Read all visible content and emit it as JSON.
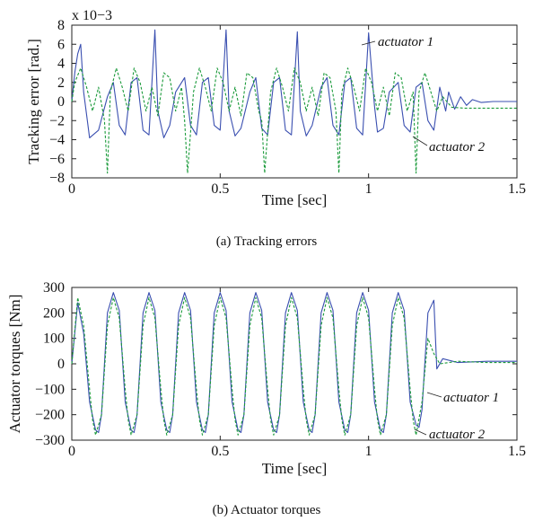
{
  "chart_data": [
    {
      "type": "line",
      "title": "",
      "xlabel": "Time [sec]",
      "ylabel": "Tracking error [rad.]",
      "y_multiplier_label": "x 10−3",
      "caption": "(a)  Tracking errors",
      "xlim": [
        0,
        1.5
      ],
      "ylim": [
        -8,
        8
      ],
      "x_ticks": [
        "0",
        "0.5",
        "1",
        "1.5"
      ],
      "y_ticks": [
        "8",
        "6",
        "4",
        "2",
        "0",
        "−2",
        "−4",
        "−6",
        "−8"
      ],
      "grid": false,
      "annotations": [
        "actuator 1",
        "actuator 2"
      ],
      "series": [
        {
          "name": "actuator 1",
          "color": "#3a4fb0",
          "style": "solid",
          "x": [
            0.0,
            0.01,
            0.02,
            0.03,
            0.04,
            0.06,
            0.09,
            0.12,
            0.14,
            0.16,
            0.18,
            0.2,
            0.22,
            0.24,
            0.26,
            0.28,
            0.29,
            0.31,
            0.33,
            0.35,
            0.38,
            0.4,
            0.42,
            0.44,
            0.46,
            0.48,
            0.5,
            0.52,
            0.53,
            0.55,
            0.57,
            0.6,
            0.62,
            0.64,
            0.66,
            0.68,
            0.7,
            0.72,
            0.74,
            0.76,
            0.77,
            0.79,
            0.81,
            0.84,
            0.86,
            0.88,
            0.9,
            0.92,
            0.94,
            0.96,
            0.98,
            1.0,
            1.02,
            1.03,
            1.05,
            1.07,
            1.1,
            1.12,
            1.14,
            1.16,
            1.18,
            1.2,
            1.22,
            1.24,
            1.26,
            1.27,
            1.29,
            1.31,
            1.33,
            1.35,
            1.38,
            1.42,
            1.46,
            1.5
          ],
          "values": [
            0.0,
            3.0,
            5.0,
            6.0,
            1.0,
            -3.8,
            -3.0,
            0.5,
            2.0,
            -2.5,
            -3.5,
            2.0,
            2.5,
            -3.0,
            -3.5,
            7.5,
            -1.0,
            -3.8,
            -2.5,
            1.0,
            2.5,
            -2.5,
            -3.5,
            2.0,
            2.5,
            -2.5,
            -3.0,
            7.5,
            -1.0,
            -3.6,
            -2.8,
            1.0,
            2.5,
            -2.8,
            -3.5,
            2.0,
            2.5,
            -3.0,
            -3.5,
            7.3,
            -1.0,
            -3.6,
            -2.5,
            1.5,
            2.5,
            -2.5,
            -3.5,
            2.0,
            2.5,
            -2.8,
            -3.5,
            7.2,
            -0.5,
            -3.2,
            -2.8,
            1.0,
            2.0,
            -2.5,
            -3.2,
            1.5,
            2.0,
            -2.0,
            -3.0,
            1.5,
            -1.0,
            1.0,
            -0.8,
            0.5,
            -0.4,
            0.2,
            -0.1,
            0.0,
            0.0,
            0.0
          ]
        },
        {
          "name": "actuator 2",
          "color": "#1a9a3a",
          "style": "dashed",
          "x": [
            0.0,
            0.01,
            0.03,
            0.05,
            0.07,
            0.09,
            0.11,
            0.12,
            0.13,
            0.15,
            0.17,
            0.19,
            0.21,
            0.23,
            0.25,
            0.27,
            0.29,
            0.31,
            0.33,
            0.35,
            0.37,
            0.38,
            0.39,
            0.41,
            0.43,
            0.45,
            0.47,
            0.49,
            0.51,
            0.53,
            0.55,
            0.57,
            0.59,
            0.61,
            0.63,
            0.64,
            0.65,
            0.67,
            0.69,
            0.71,
            0.73,
            0.75,
            0.77,
            0.79,
            0.81,
            0.83,
            0.85,
            0.87,
            0.89,
            0.9,
            0.91,
            0.93,
            0.95,
            0.97,
            0.99,
            1.01,
            1.03,
            1.05,
            1.07,
            1.09,
            1.11,
            1.13,
            1.15,
            1.16,
            1.17,
            1.19,
            1.21,
            1.23,
            1.25,
            1.28,
            1.32,
            1.4,
            1.5
          ],
          "values": [
            0.0,
            2.0,
            3.5,
            1.5,
            -1.0,
            1.5,
            -2.0,
            -7.5,
            1.0,
            3.5,
            1.5,
            -1.0,
            3.5,
            2.0,
            -1.0,
            1.5,
            -1.5,
            3.0,
            2.5,
            -1.0,
            1.5,
            -2.0,
            -7.5,
            1.0,
            3.5,
            1.5,
            -1.0,
            3.5,
            2.0,
            -1.0,
            1.5,
            -1.5,
            3.0,
            2.5,
            -1.0,
            -2.0,
            -7.5,
            1.0,
            3.5,
            1.5,
            -1.0,
            3.5,
            2.0,
            -1.0,
            1.5,
            -1.5,
            3.0,
            2.5,
            -1.0,
            -7.5,
            1.0,
            3.5,
            1.5,
            -1.0,
            3.5,
            2.0,
            -1.0,
            1.5,
            -1.5,
            3.0,
            2.5,
            -1.0,
            1.0,
            -7.5,
            1.0,
            3.0,
            1.0,
            -1.0,
            0.5,
            -0.6,
            -0.7,
            -0.7,
            -0.7
          ]
        }
      ]
    },
    {
      "type": "line",
      "title": "",
      "xlabel": "Time [sec]",
      "ylabel": "Actuator torques [Nm]",
      "caption": "(b)  Actuator torques",
      "xlim": [
        0,
        1.5
      ],
      "ylim": [
        -300,
        300
      ],
      "x_ticks": [
        "0",
        "0.5",
        "1",
        "1.5"
      ],
      "y_ticks": [
        "300",
        "200",
        "100",
        "0",
        "−100",
        "−200",
        "−300"
      ],
      "grid": false,
      "annotations": [
        "actuator 1",
        "actuator 2"
      ],
      "series": [
        {
          "name": "actuator 1",
          "color": "#3a4fb0",
          "style": "solid",
          "x": [
            0.0,
            0.02,
            0.04,
            0.06,
            0.08,
            0.09,
            0.1,
            0.12,
            0.14,
            0.16,
            0.18,
            0.2,
            0.21,
            0.22,
            0.24,
            0.26,
            0.28,
            0.3,
            0.32,
            0.33,
            0.34,
            0.36,
            0.38,
            0.4,
            0.42,
            0.44,
            0.45,
            0.46,
            0.48,
            0.5,
            0.52,
            0.54,
            0.56,
            0.57,
            0.58,
            0.6,
            0.62,
            0.64,
            0.66,
            0.68,
            0.69,
            0.7,
            0.72,
            0.74,
            0.76,
            0.78,
            0.8,
            0.81,
            0.82,
            0.84,
            0.86,
            0.88,
            0.9,
            0.92,
            0.93,
            0.94,
            0.96,
            0.98,
            1.0,
            1.02,
            1.04,
            1.05,
            1.06,
            1.08,
            1.1,
            1.12,
            1.14,
            1.16,
            1.17,
            1.18,
            1.2,
            1.22,
            1.23,
            1.25,
            1.3,
            1.4,
            1.5
          ],
          "values": [
            0,
            240,
            120,
            -150,
            -260,
            -270,
            -200,
            200,
            280,
            210,
            -150,
            -260,
            -270,
            -200,
            200,
            280,
            210,
            -150,
            -260,
            -270,
            -200,
            200,
            280,
            210,
            -150,
            -260,
            -270,
            -200,
            200,
            280,
            210,
            -150,
            -260,
            -270,
            -200,
            200,
            280,
            210,
            -150,
            -260,
            -270,
            -200,
            200,
            280,
            210,
            -150,
            -260,
            -270,
            -200,
            200,
            280,
            210,
            -150,
            -260,
            -270,
            -200,
            200,
            280,
            210,
            -150,
            -260,
            -270,
            -200,
            200,
            280,
            210,
            -150,
            -240,
            -250,
            -180,
            200,
            250,
            -20,
            20,
            5,
            10,
            10
          ]
        },
        {
          "name": "actuator 2",
          "color": "#1a9a3a",
          "style": "dashed",
          "x": [
            0.0,
            0.02,
            0.04,
            0.06,
            0.07,
            0.08,
            0.1,
            0.12,
            0.14,
            0.16,
            0.18,
            0.19,
            0.2,
            0.22,
            0.24,
            0.26,
            0.28,
            0.3,
            0.31,
            0.32,
            0.34,
            0.36,
            0.38,
            0.4,
            0.42,
            0.43,
            0.44,
            0.46,
            0.48,
            0.5,
            0.52,
            0.54,
            0.55,
            0.56,
            0.58,
            0.6,
            0.62,
            0.64,
            0.66,
            0.67,
            0.68,
            0.7,
            0.72,
            0.74,
            0.76,
            0.78,
            0.79,
            0.8,
            0.82,
            0.84,
            0.86,
            0.88,
            0.9,
            0.91,
            0.92,
            0.94,
            0.96,
            0.98,
            1.0,
            1.02,
            1.03,
            1.04,
            1.06,
            1.08,
            1.1,
            1.12,
            1.14,
            1.15,
            1.16,
            1.18,
            1.2,
            1.22,
            1.24,
            1.3,
            1.4,
            1.5
          ],
          "values": [
            0,
            260,
            150,
            -100,
            -220,
            -280,
            -200,
            150,
            260,
            180,
            -100,
            -220,
            -280,
            -200,
            150,
            260,
            180,
            -100,
            -220,
            -280,
            -200,
            150,
            260,
            180,
            -100,
            -220,
            -280,
            -200,
            150,
            260,
            180,
            -100,
            -220,
            -280,
            -200,
            150,
            260,
            180,
            -100,
            -220,
            -280,
            -200,
            150,
            260,
            180,
            -100,
            -220,
            -280,
            -200,
            150,
            260,
            180,
            -100,
            -220,
            -280,
            -200,
            150,
            260,
            180,
            -100,
            -220,
            -280,
            -200,
            150,
            260,
            180,
            -100,
            -220,
            -280,
            -150,
            100,
            40,
            0,
            10,
            5,
            5
          ]
        }
      ]
    }
  ]
}
